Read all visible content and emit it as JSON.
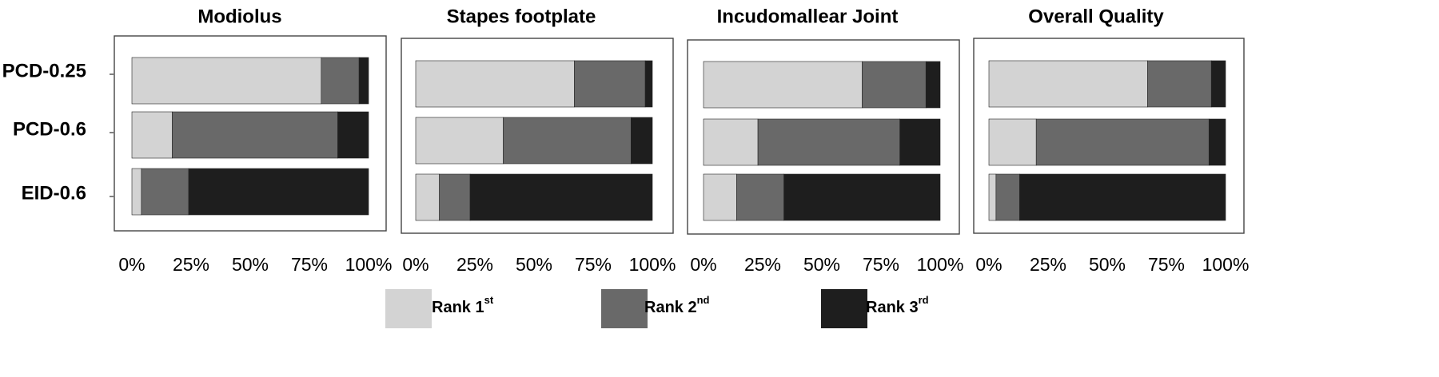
{
  "chart_data": {
    "type": "bar",
    "orientation": "horizontal",
    "stacked": true,
    "categories": [
      "PCD-0.25",
      "PCD-0.6",
      "EID-0.6"
    ],
    "series_colors": [
      "#d3d3d3",
      "#696969",
      "#1e1e1e"
    ],
    "legend": {
      "position": "bottom",
      "entries": [
        {
          "base": "Rank 1",
          "sup": "st"
        },
        {
          "base": "Rank 2",
          "sup": "nd"
        },
        {
          "base": "Rank 3",
          "sup": "rd"
        }
      ]
    },
    "xlim": [
      0,
      100
    ],
    "xticks": [
      "0%",
      "25%",
      "50%",
      "75%",
      "100%"
    ],
    "grid": false,
    "panels": [
      {
        "title": "Modiolus",
        "series": [
          {
            "name": "Rank 1st",
            "values": [
              80,
              17,
              4
            ]
          },
          {
            "name": "Rank 2nd",
            "values": [
              16,
              70,
              20
            ]
          },
          {
            "name": "Rank 3rd",
            "values": [
              4,
              13,
              76
            ]
          }
        ]
      },
      {
        "title": "Stapes footplate",
        "series": [
          {
            "name": "Rank 1st",
            "values": [
              67,
              37,
              10
            ]
          },
          {
            "name": "Rank 2nd",
            "values": [
              30,
              54,
              13
            ]
          },
          {
            "name": "Rank 3rd",
            "values": [
              3,
              9,
              77
            ]
          }
        ]
      },
      {
        "title": "Incudomallear Joint",
        "series": [
          {
            "name": "Rank 1st",
            "values": [
              67,
              23,
              14
            ]
          },
          {
            "name": "Rank 2nd",
            "values": [
              27,
              60,
              20
            ]
          },
          {
            "name": "Rank 3rd",
            "values": [
              6,
              17,
              66
            ]
          }
        ]
      },
      {
        "title": "Overall Quality",
        "series": [
          {
            "name": "Rank 1st",
            "values": [
              67,
              20,
              3
            ]
          },
          {
            "name": "Rank 2nd",
            "values": [
              27,
              73,
              10
            ]
          },
          {
            "name": "Rank 3rd",
            "values": [
              6,
              7,
              87
            ]
          }
        ]
      }
    ]
  }
}
